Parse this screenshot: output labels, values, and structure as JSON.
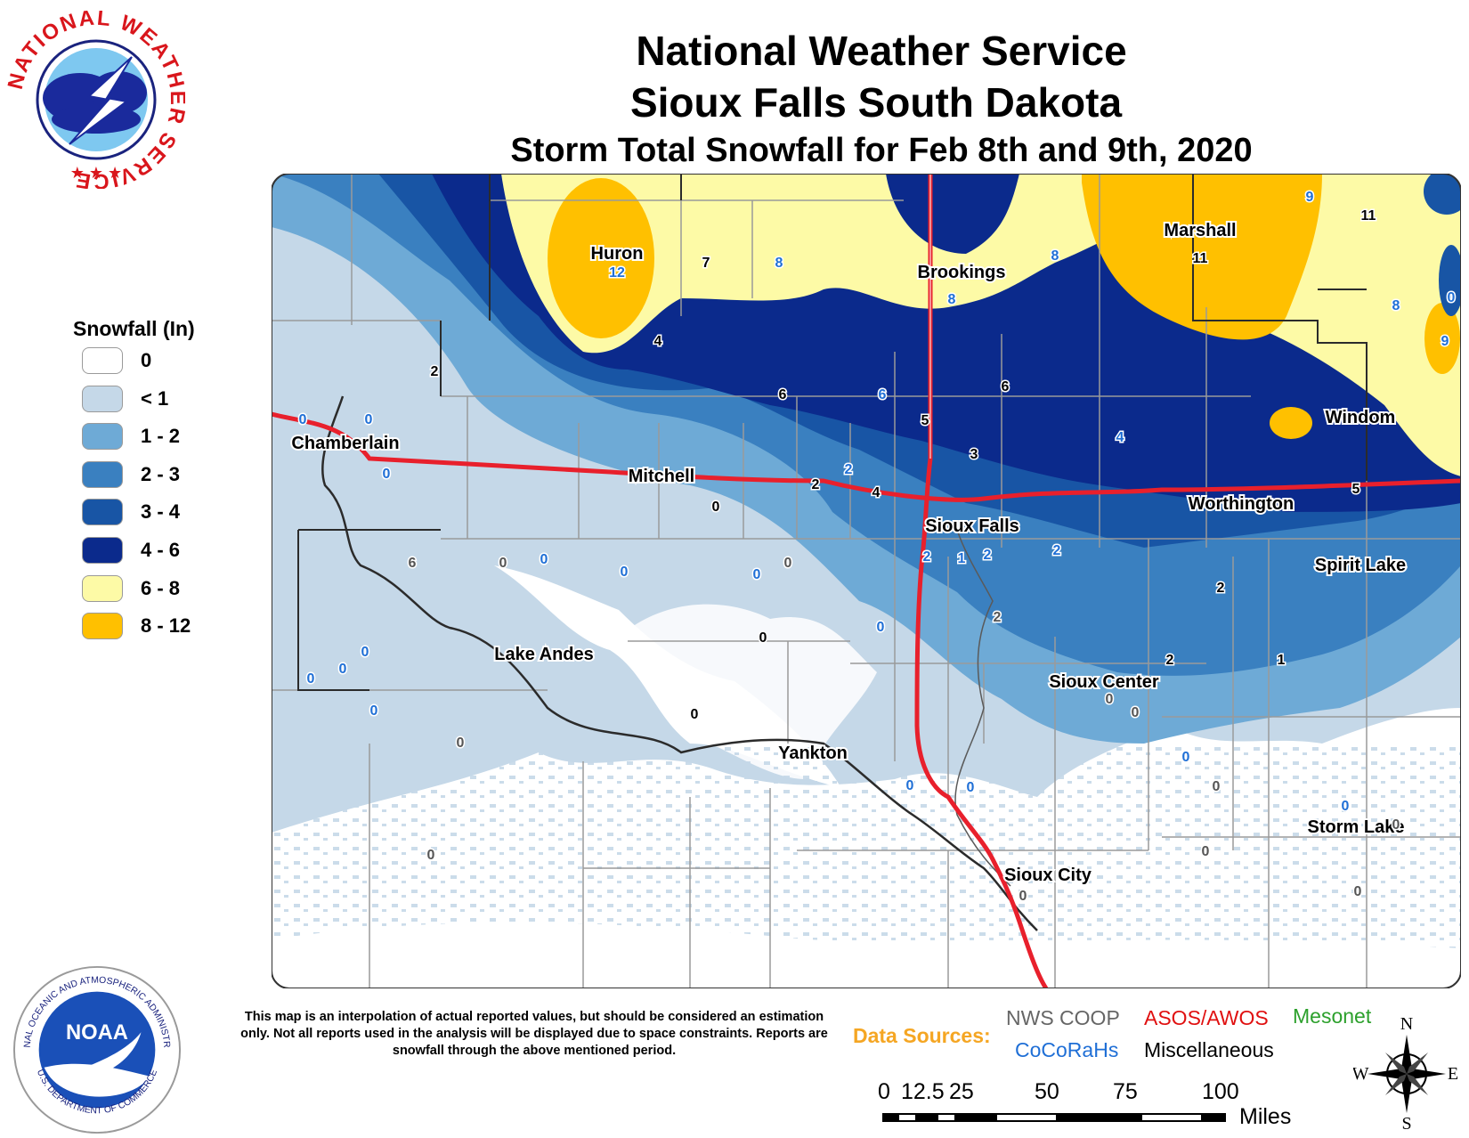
{
  "header": {
    "line1": "National Weather Service",
    "line2": "Sioux Falls South Dakota",
    "line3": "Storm Total Snowfall for Feb 8th and 9th, 2020"
  },
  "logos": {
    "nws_text": "NATIONAL WEATHER SERVICE",
    "noaa_text": "NOAA",
    "noaa_ring": "NATIONAL OCEANIC AND ATMOSPHERIC ADMINISTRATION",
    "noaa_ring_bottom": "U.S. DEPARTMENT OF COMMERCE"
  },
  "legend": {
    "title": "Snowfall (In)",
    "items": [
      {
        "label": "0",
        "color": "#ffffff"
      },
      {
        "label": "< 1",
        "color": "#c5d8e8"
      },
      {
        "label": "1 - 2",
        "color": "#6eaad6"
      },
      {
        "label": "2 - 3",
        "color": "#3a80c0"
      },
      {
        "label": "3 - 4",
        "color": "#1855a5"
      },
      {
        "label": "4 - 6",
        "color": "#0b2a8c"
      },
      {
        "label": "6 - 8",
        "color": "#fdfaa6"
      },
      {
        "label": "8 - 12",
        "color": "#ffc000"
      }
    ]
  },
  "cities": [
    {
      "name": "Huron"
    },
    {
      "name": "Brookings"
    },
    {
      "name": "Marshall"
    },
    {
      "name": "Chamberlain"
    },
    {
      "name": "Mitchell"
    },
    {
      "name": "Windom"
    },
    {
      "name": "Sioux Falls"
    },
    {
      "name": "Worthington"
    },
    {
      "name": "Spirit Lake"
    },
    {
      "name": "Lake Andes"
    },
    {
      "name": "Sioux Center"
    },
    {
      "name": "Yankton"
    },
    {
      "name": "Storm Lake"
    },
    {
      "name": "Sioux City"
    }
  ],
  "reports": [
    {
      "v": "12",
      "s": "cocorahs"
    },
    {
      "v": "7",
      "s": "misc"
    },
    {
      "v": "8",
      "s": "cocorahs"
    },
    {
      "v": "8",
      "s": "cocorahs"
    },
    {
      "v": "8",
      "s": "cocorahs"
    },
    {
      "v": "11",
      "s": "misc"
    },
    {
      "v": "9",
      "s": "cocorahs"
    },
    {
      "v": "11",
      "s": "misc"
    },
    {
      "v": "8",
      "s": "cocorahs"
    },
    {
      "v": "0",
      "s": "cocorahs"
    },
    {
      "v": "9",
      "s": "cocorahs"
    },
    {
      "v": "4",
      "s": "misc"
    },
    {
      "v": "6",
      "s": "misc"
    },
    {
      "v": "6",
      "s": "cocorahs"
    },
    {
      "v": "5",
      "s": "misc"
    },
    {
      "v": "6",
      "s": "misc"
    },
    {
      "v": "2",
      "s": "misc"
    },
    {
      "v": "0",
      "s": "cocorahs"
    },
    {
      "v": "0",
      "s": "cocorahs"
    },
    {
      "v": "0",
      "s": "cocorahs"
    },
    {
      "v": "6",
      "s": "nws"
    },
    {
      "v": "3",
      "s": "misc"
    },
    {
      "v": "4",
      "s": "cocorahs"
    },
    {
      "v": "2",
      "s": "cocorahs"
    },
    {
      "v": "2",
      "s": "misc"
    },
    {
      "v": "4",
      "s": "misc"
    },
    {
      "v": "0",
      "s": "misc"
    },
    {
      "v": "5",
      "s": "misc"
    },
    {
      "v": "0",
      "s": "cocorahs"
    },
    {
      "v": "0",
      "s": "nws"
    },
    {
      "v": "0",
      "s": "nws"
    },
    {
      "v": "0",
      "s": "cocorahs"
    },
    {
      "v": "0",
      "s": "cocorahs"
    },
    {
      "v": "2",
      "s": "cocorahs"
    },
    {
      "v": "1",
      "s": "cocorahs"
    },
    {
      "v": "2",
      "s": "cocorahs"
    },
    {
      "v": "2",
      "s": "cocorahs"
    },
    {
      "v": "2",
      "s": "misc"
    },
    {
      "v": "0",
      "s": "cocorahs"
    },
    {
      "v": "0",
      "s": "misc"
    },
    {
      "v": "2",
      "s": "nws"
    },
    {
      "v": "0",
      "s": "cocorahs"
    },
    {
      "v": "0",
      "s": "cocorahs"
    },
    {
      "v": "0",
      "s": "cocorahs"
    },
    {
      "v": "2",
      "s": "misc"
    },
    {
      "v": "1",
      "s": "misc"
    },
    {
      "v": "0",
      "s": "nws"
    },
    {
      "v": "0",
      "s": "nws"
    },
    {
      "v": "0",
      "s": "misc"
    },
    {
      "v": "0",
      "s": "cocorahs"
    },
    {
      "v": "0",
      "s": "nws"
    },
    {
      "v": "0",
      "s": "cocorahs"
    },
    {
      "v": "0",
      "s": "cocorahs"
    },
    {
      "v": "0",
      "s": "cocorahs"
    },
    {
      "v": "0",
      "s": "nws"
    },
    {
      "v": "0",
      "s": "cocorahs"
    },
    {
      "v": "0",
      "s": "nws"
    },
    {
      "v": "0",
      "s": "nws"
    },
    {
      "v": "0",
      "s": "nws"
    },
    {
      "v": "0",
      "s": "nws"
    },
    {
      "v": "0",
      "s": "nws"
    }
  ],
  "source_colors": {
    "nws": "#555555",
    "cocorahs": "#1f6fd6",
    "misc": "#000000",
    "asos": "#e01010",
    "mesonet": "#2ca02c"
  },
  "disclaimer": "This map is an interpolation of actual reported values, but should be considered an estimation only. Not all reports used in the analysis will be displayed due to space constraints. Reports are snowfall through the above mentioned period.",
  "data_sources": {
    "label": "Data Sources:",
    "nws_coop": "NWS COOP",
    "asos": "ASOS/AWOS",
    "mesonet": "Mesonet",
    "cocorahs": "CoCoRaHs",
    "misc": "Miscellaneous"
  },
  "scale": {
    "ticks": [
      "0",
      "12.5",
      "25",
      "50",
      "75",
      "100"
    ],
    "unit": "Miles"
  },
  "compass": {
    "n": "N",
    "s": "S",
    "e": "E",
    "w": "W"
  }
}
